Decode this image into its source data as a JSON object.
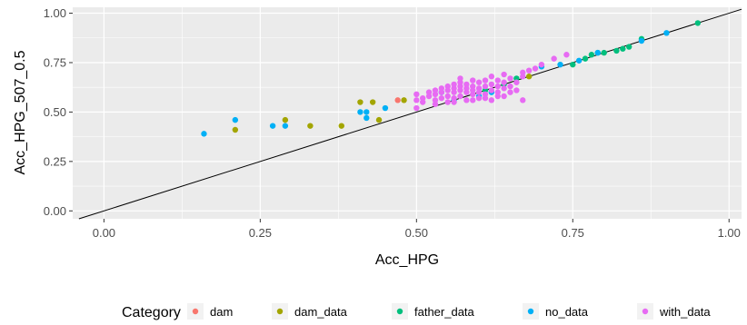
{
  "chart_data": {
    "type": "scatter",
    "xlabel": "Acc_HPG",
    "ylabel": "Acc_HPG_507_0.5",
    "xlim": [
      -0.05,
      1.02
    ],
    "ylim": [
      -0.04,
      1.03
    ],
    "x_ticks": [
      0.0,
      0.25,
      0.5,
      0.75,
      1.0
    ],
    "y_ticks": [
      0.0,
      0.25,
      0.5,
      0.75,
      1.0
    ],
    "x_tick_labels": [
      "0.00",
      "0.25",
      "0.50",
      "0.75",
      "1.00"
    ],
    "y_tick_labels": [
      "0.00",
      "0.25",
      "0.50",
      "0.75",
      "1.00"
    ],
    "grid": true,
    "reference_line": {
      "type": "identity",
      "slope": 1,
      "intercept": 0
    },
    "legend": {
      "title": "Category",
      "position": "bottom"
    },
    "series": [
      {
        "name": "dam",
        "color": "#F8766D",
        "points": [
          [
            0.47,
            0.56
          ]
        ]
      },
      {
        "name": "dam_data",
        "color": "#A3A500",
        "points": [
          [
            0.21,
            0.41
          ],
          [
            0.29,
            0.46
          ],
          [
            0.33,
            0.43
          ],
          [
            0.38,
            0.43
          ],
          [
            0.41,
            0.55
          ],
          [
            0.43,
            0.55
          ],
          [
            0.44,
            0.46
          ],
          [
            0.48,
            0.56
          ],
          [
            0.68,
            0.68
          ]
        ]
      },
      {
        "name": "father_data",
        "color": "#00BF7D",
        "points": [
          [
            0.75,
            0.74
          ],
          [
            0.77,
            0.77
          ],
          [
            0.78,
            0.79
          ],
          [
            0.79,
            0.8
          ],
          [
            0.8,
            0.8
          ],
          [
            0.82,
            0.81
          ],
          [
            0.83,
            0.82
          ],
          [
            0.84,
            0.83
          ],
          [
            0.86,
            0.87
          ],
          [
            0.95,
            0.95
          ],
          [
            0.61,
            0.61
          ],
          [
            0.64,
            0.64
          ],
          [
            0.66,
            0.67
          ]
        ]
      },
      {
        "name": "no_data",
        "color": "#00B0F6",
        "points": [
          [
            0.16,
            0.39
          ],
          [
            0.21,
            0.46
          ],
          [
            0.27,
            0.43
          ],
          [
            0.29,
            0.43
          ],
          [
            0.41,
            0.5
          ],
          [
            0.42,
            0.5
          ],
          [
            0.42,
            0.47
          ],
          [
            0.45,
            0.52
          ],
          [
            0.54,
            0.6
          ],
          [
            0.56,
            0.56
          ],
          [
            0.6,
            0.58
          ],
          [
            0.62,
            0.6
          ],
          [
            0.7,
            0.73
          ],
          [
            0.73,
            0.74
          ],
          [
            0.76,
            0.76
          ],
          [
            0.79,
            0.8
          ],
          [
            0.86,
            0.86
          ],
          [
            0.9,
            0.9
          ]
        ]
      },
      {
        "name": "with_data",
        "color": "#E76BF3",
        "points": [
          [
            0.5,
            0.52
          ],
          [
            0.5,
            0.56
          ],
          [
            0.5,
            0.59
          ],
          [
            0.51,
            0.55
          ],
          [
            0.51,
            0.57
          ],
          [
            0.52,
            0.58
          ],
          [
            0.52,
            0.6
          ],
          [
            0.53,
            0.56
          ],
          [
            0.53,
            0.59
          ],
          [
            0.53,
            0.61
          ],
          [
            0.54,
            0.57
          ],
          [
            0.54,
            0.6
          ],
          [
            0.54,
            0.62
          ],
          [
            0.55,
            0.55
          ],
          [
            0.55,
            0.58
          ],
          [
            0.55,
            0.61
          ],
          [
            0.55,
            0.63
          ],
          [
            0.56,
            0.57
          ],
          [
            0.56,
            0.6
          ],
          [
            0.56,
            0.62
          ],
          [
            0.56,
            0.64
          ],
          [
            0.57,
            0.58
          ],
          [
            0.57,
            0.61
          ],
          [
            0.57,
            0.63
          ],
          [
            0.57,
            0.65
          ],
          [
            0.58,
            0.56
          ],
          [
            0.58,
            0.6
          ],
          [
            0.58,
            0.62
          ],
          [
            0.58,
            0.64
          ],
          [
            0.59,
            0.59
          ],
          [
            0.59,
            0.61
          ],
          [
            0.59,
            0.63
          ],
          [
            0.59,
            0.66
          ],
          [
            0.6,
            0.57
          ],
          [
            0.6,
            0.6
          ],
          [
            0.6,
            0.62
          ],
          [
            0.6,
            0.65
          ],
          [
            0.61,
            0.59
          ],
          [
            0.61,
            0.63
          ],
          [
            0.61,
            0.66
          ],
          [
            0.62,
            0.56
          ],
          [
            0.62,
            0.61
          ],
          [
            0.62,
            0.64
          ],
          [
            0.62,
            0.68
          ],
          [
            0.63,
            0.6
          ],
          [
            0.63,
            0.63
          ],
          [
            0.63,
            0.66
          ],
          [
            0.64,
            0.58
          ],
          [
            0.64,
            0.62
          ],
          [
            0.64,
            0.65
          ],
          [
            0.64,
            0.69
          ],
          [
            0.65,
            0.63
          ],
          [
            0.65,
            0.67
          ],
          [
            0.66,
            0.61
          ],
          [
            0.66,
            0.65
          ],
          [
            0.67,
            0.68
          ],
          [
            0.67,
            0.7
          ],
          [
            0.68,
            0.71
          ],
          [
            0.69,
            0.72
          ],
          [
            0.7,
            0.74
          ],
          [
            0.72,
            0.77
          ],
          [
            0.74,
            0.79
          ],
          [
            0.56,
            0.55
          ],
          [
            0.59,
            0.56
          ],
          [
            0.61,
            0.57
          ],
          [
            0.63,
            0.58
          ],
          [
            0.65,
            0.6
          ],
          [
            0.67,
            0.56
          ],
          [
            0.53,
            0.54
          ],
          [
            0.57,
            0.67
          ]
        ]
      }
    ]
  }
}
